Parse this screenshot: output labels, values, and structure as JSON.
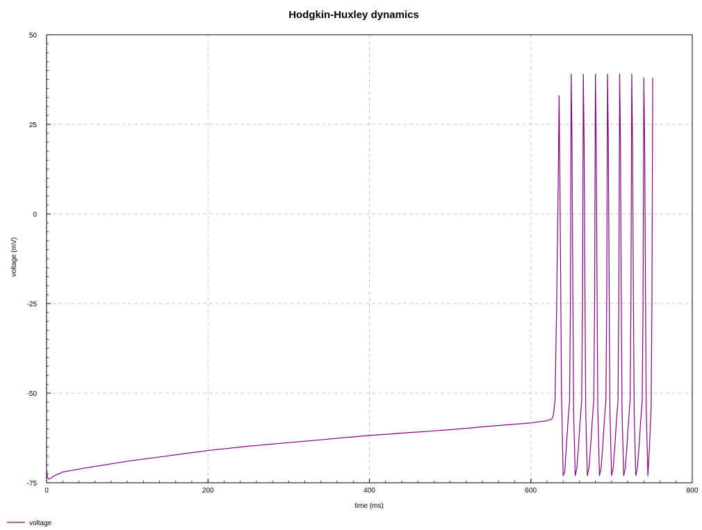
{
  "chart_data": {
    "type": "line",
    "title": "Hodgkin-Huxley dynamics",
    "xlabel": "time (ms)",
    "ylabel": "voltage (mV)",
    "xlim": [
      0,
      800
    ],
    "ylim": [
      -75,
      50
    ],
    "xticks": [
      0,
      200,
      400,
      600,
      800
    ],
    "yticks": [
      -75,
      -50,
      -25,
      0,
      25,
      50
    ],
    "grid": true,
    "legend_position": "bottom-left",
    "series": [
      {
        "name": "voltage",
        "color": "#800080",
        "x": [
          0,
          1,
          3,
          6,
          10,
          20,
          30,
          50,
          100,
          150,
          200,
          250,
          300,
          350,
          400,
          450,
          500,
          550,
          600,
          620,
          626,
          628,
          630,
          632,
          634,
          635,
          636,
          637,
          638,
          640,
          642,
          644,
          646,
          648,
          649,
          650,
          651,
          652,
          653,
          655,
          657,
          659,
          661,
          663,
          664,
          665,
          666,
          667,
          668,
          670,
          672,
          674,
          676,
          678,
          679,
          680,
          681,
          682,
          683,
          685,
          687,
          689,
          691,
          693,
          694,
          695,
          696,
          697,
          698,
          700,
          702,
          704,
          706,
          708,
          709,
          710,
          711,
          712,
          713,
          715,
          717,
          719,
          721,
          723,
          724,
          725,
          726,
          727,
          728,
          730,
          732,
          734,
          736,
          738,
          739,
          740,
          741,
          742,
          743,
          745,
          747,
          749,
          750,
          751
        ],
        "y": [
          -71,
          -73.5,
          -74,
          -73.6,
          -73,
          -72,
          -71.6,
          -70.8,
          -69,
          -67.5,
          -66,
          -64.8,
          -63.8,
          -62.8,
          -61.8,
          -61,
          -60.2,
          -59.2,
          -58.3,
          -57.7,
          -57.2,
          -56,
          -52,
          -25,
          10,
          33,
          10,
          -20,
          -50,
          -73,
          -72,
          -65,
          -58,
          -52,
          -25,
          39,
          20,
          -20,
          -55,
          -73,
          -71,
          -65,
          -58,
          -52,
          -25,
          39,
          20,
          -20,
          -55,
          -73,
          -71,
          -65,
          -58,
          -52,
          -25,
          39,
          20,
          -20,
          -55,
          -73,
          -71,
          -65,
          -58,
          -52,
          -25,
          39,
          20,
          -20,
          -55,
          -73,
          -71,
          -65,
          -58,
          -52,
          -25,
          39,
          20,
          -20,
          -55,
          -73,
          -71,
          -65,
          -58,
          -52,
          -25,
          39,
          20,
          -20,
          -55,
          -73,
          -71,
          -65,
          -58,
          -52,
          -25,
          38,
          20,
          -20,
          -55,
          -73,
          -65,
          -54,
          -25,
          38
        ]
      }
    ]
  }
}
